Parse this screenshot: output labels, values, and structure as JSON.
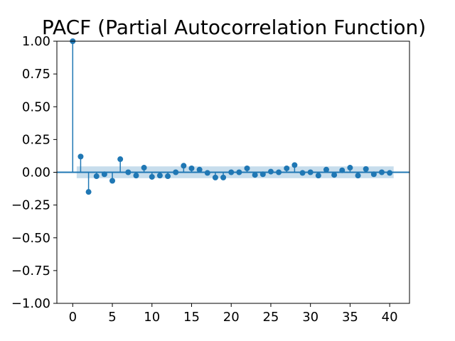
{
  "chart_data": {
    "type": "stem",
    "title": "PACF (Partial Autocorrelation Function)",
    "xlabel": "",
    "ylabel": "",
    "xlim": [
      -2,
      42.5
    ],
    "ylim": [
      -1.0,
      1.0
    ],
    "xticks": [
      0,
      5,
      10,
      15,
      20,
      25,
      30,
      35,
      40
    ],
    "xtick_labels": [
      "0",
      "5",
      "10",
      "15",
      "20",
      "25",
      "30",
      "35",
      "40"
    ],
    "yticks": [
      -1.0,
      -0.75,
      -0.5,
      -0.25,
      0.0,
      0.25,
      0.5,
      0.75,
      1.0
    ],
    "ytick_labels": [
      "−1.00",
      "−0.75",
      "−0.50",
      "−0.25",
      "0.00",
      "0.25",
      "0.50",
      "0.75",
      "1.00"
    ],
    "confidence_band": {
      "x_start": 0.5,
      "x_end": 40.5,
      "lower": -0.045,
      "upper": 0.045
    },
    "lags": [
      0,
      1,
      2,
      3,
      4,
      5,
      6,
      7,
      8,
      9,
      10,
      11,
      12,
      13,
      14,
      15,
      16,
      17,
      18,
      19,
      20,
      21,
      22,
      23,
      24,
      25,
      26,
      27,
      28,
      29,
      30,
      31,
      32,
      33,
      34,
      35,
      36,
      37,
      38,
      39,
      40
    ],
    "values": [
      1.0,
      0.12,
      -0.15,
      -0.03,
      -0.015,
      -0.065,
      0.1,
      0.0,
      -0.025,
      0.035,
      -0.035,
      -0.025,
      -0.03,
      0.0,
      0.05,
      0.03,
      0.02,
      -0.005,
      -0.04,
      -0.04,
      0.0,
      0.0,
      0.03,
      -0.02,
      -0.015,
      0.005,
      0.0,
      0.03,
      0.055,
      -0.005,
      0.0,
      -0.025,
      0.02,
      -0.02,
      0.015,
      0.035,
      -0.025,
      0.025,
      -0.015,
      0.0,
      -0.005
    ],
    "grid": false,
    "colors": {
      "series": "#1f77b4",
      "band": "#1f77b4",
      "axes": "#000000"
    }
  }
}
